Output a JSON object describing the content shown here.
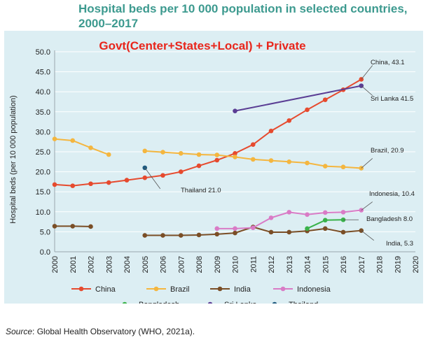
{
  "title_line1": "Hospital beds per 10 000 population in selected countries,",
  "title_line2": "2000–2017",
  "source_label": "Source",
  "source_text": ": Global Health Observatory (WHO, 2021a).",
  "colors": {
    "title": "#3d9a8f",
    "panel": "#dceef3",
    "overlay_text": "#e8261c"
  },
  "chart_data": {
    "type": "line",
    "overlay_text": "Govt(Center+States+Local) + Private",
    "ylabel": "Hospital beds (per 10 000 population)",
    "xlabel": "",
    "ylim": [
      0,
      50
    ],
    "xlim": [
      2000,
      2020
    ],
    "y_ticks": [
      "0.0",
      "5.0",
      "10.0",
      "15.0",
      "20.0",
      "25.0",
      "30.0",
      "35.0",
      "40.0",
      "45.0",
      "50.0"
    ],
    "x_ticks": [
      "2000",
      "2001",
      "2002",
      "2003",
      "2004",
      "2005",
      "2006",
      "2007",
      "2008",
      "2009",
      "2010",
      "2011",
      "2012",
      "2013",
      "2014",
      "2015",
      "2016",
      "2017",
      "2018",
      "2019",
      "2020"
    ],
    "grid": "horizontal",
    "legend_position": "bottom",
    "series": [
      {
        "name": "China",
        "color": "#e64a2e",
        "points": [
          [
            2000,
            16.8
          ],
          [
            2001,
            16.5
          ],
          [
            2002,
            17.0
          ],
          [
            2003,
            17.3
          ],
          [
            2004,
            17.9
          ],
          [
            2005,
            18.5
          ],
          [
            2006,
            19.1
          ],
          [
            2007,
            20.0
          ],
          [
            2008,
            21.5
          ],
          [
            2009,
            22.9
          ],
          [
            2010,
            24.6
          ],
          [
            2011,
            26.8
          ],
          [
            2012,
            30.2
          ],
          [
            2013,
            32.8
          ],
          [
            2014,
            35.5
          ],
          [
            2015,
            38.0
          ],
          [
            2016,
            40.5
          ],
          [
            2017,
            43.1
          ]
        ]
      },
      {
        "name": "Brazil",
        "color": "#f4b63f",
        "segments": [
          [
            [
              2000,
              28.2
            ],
            [
              2001,
              27.8
            ],
            [
              2002,
              26.0
            ],
            [
              2003,
              24.3
            ]
          ],
          [
            [
              2005,
              25.2
            ],
            [
              2006,
              24.9
            ],
            [
              2007,
              24.6
            ],
            [
              2008,
              24.3
            ],
            [
              2009,
              24.2
            ],
            [
              2010,
              23.7
            ],
            [
              2011,
              23.1
            ],
            [
              2012,
              22.8
            ],
            [
              2013,
              22.5
            ],
            [
              2014,
              22.2
            ],
            [
              2015,
              21.4
            ],
            [
              2016,
              21.2
            ],
            [
              2017,
              20.9
            ]
          ]
        ]
      },
      {
        "name": "India",
        "color": "#7a4e26",
        "segments": [
          [
            [
              2000,
              6.4
            ],
            [
              2001,
              6.4
            ],
            [
              2002,
              6.3
            ]
          ],
          [
            [
              2005,
              4.1
            ],
            [
              2006,
              4.1
            ],
            [
              2007,
              4.1
            ],
            [
              2008,
              4.2
            ],
            [
              2009,
              4.4
            ],
            [
              2010,
              4.7
            ],
            [
              2011,
              6.2
            ],
            [
              2012,
              4.9
            ],
            [
              2013,
              4.9
            ],
            [
              2014,
              5.2
            ],
            [
              2015,
              5.8
            ],
            [
              2016,
              4.9
            ],
            [
              2017,
              5.3
            ]
          ]
        ]
      },
      {
        "name": "Indonesia",
        "color": "#d97bc6",
        "points": [
          [
            2009,
            5.8
          ],
          [
            2010,
            5.8
          ],
          [
            2011,
            6.0
          ],
          [
            2012,
            8.5
          ],
          [
            2013,
            9.9
          ],
          [
            2014,
            9.3
          ],
          [
            2015,
            9.8
          ],
          [
            2016,
            9.9
          ],
          [
            2017,
            10.4
          ]
        ]
      },
      {
        "name": "Bangladesh",
        "color": "#39b24a",
        "points": [
          [
            2014,
            5.8
          ],
          [
            2015,
            7.9
          ],
          [
            2016,
            8.0
          ]
        ]
      },
      {
        "name": "Sri Lanka",
        "color": "#5a3d94",
        "points": [
          [
            2010,
            35.2
          ],
          [
            2017,
            41.5
          ]
        ]
      },
      {
        "name": "Thailand",
        "color": "#1f5a7f",
        "points": [
          [
            2005,
            21.0
          ]
        ]
      }
    ],
    "annotations": [
      {
        "text": "China, 43.1",
        "x": 2017,
        "y": 43.1
      },
      {
        "text": "Sri Lanka 41.5",
        "x": 2017,
        "y": 41.5
      },
      {
        "text": "Brazil, 20.9",
        "x": 2017,
        "y": 20.9
      },
      {
        "text": "Thailand 21.0",
        "x": 2005,
        "y": 21.0
      },
      {
        "text": "Indonesia, 10.4",
        "x": 2017,
        "y": 10.4
      },
      {
        "text": "Bangladesh 8.0",
        "x": 2016,
        "y": 8.0
      },
      {
        "text": "India, 5.3",
        "x": 2017,
        "y": 5.3
      }
    ],
    "legend": [
      "China",
      "Brazil",
      "India",
      "Indonesia",
      "Bangladesh",
      "Sri Lanka",
      "Thailand"
    ]
  }
}
